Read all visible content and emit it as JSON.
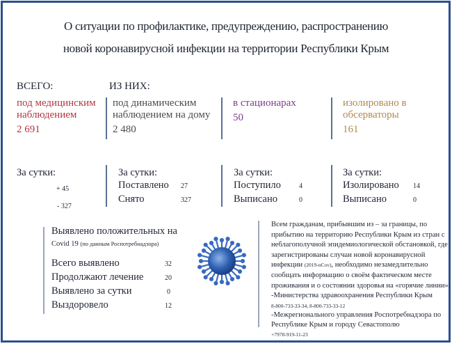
{
  "title": {
    "line1": "О ситуации по профилактике, предупреждению, распространению",
    "line2": "новой коронавирусной инфекции на территории Республики Крым"
  },
  "headers": {
    "total": "ВСЕГО:",
    "of_them": "ИЗ НИХ:"
  },
  "colors": {
    "medical": "#b2343f",
    "home": "#4a4a4a",
    "hospital": "#7a3c8c",
    "observatory": "#b08850",
    "frame": "#2c4f8e"
  },
  "stats": [
    {
      "label1": "под медицинским",
      "label2": "наблюдением",
      "value": "2 691"
    },
    {
      "label1": "под динамическим",
      "label2": "наблюдением на дому",
      "value": "2 480"
    },
    {
      "label1": "в стационарах",
      "label2": "",
      "value": "50"
    },
    {
      "label1": "изолировано в",
      "label2": "обсерваторы",
      "value": "161"
    }
  ],
  "daily": [
    {
      "heading": "За сутки:",
      "rows": [
        {
          "label": "",
          "value": "+ 45"
        },
        {
          "label": "",
          "value": "- 327"
        }
      ]
    },
    {
      "heading": "За сутки:",
      "rows": [
        {
          "label": "Поставлено",
          "value": "27"
        },
        {
          "label": "Снято",
          "value": "327"
        }
      ]
    },
    {
      "heading": "За сутки:",
      "rows": [
        {
          "label": "Поступило",
          "value": "4"
        },
        {
          "label": "Выписано",
          "value": "0"
        }
      ]
    },
    {
      "heading": "За сутки:",
      "rows": [
        {
          "label": "Изолировано",
          "value": "14"
        },
        {
          "label": "Выписано",
          "value": "0"
        }
      ]
    }
  ],
  "positive": {
    "heading": "Выявлено положительных на",
    "subheading_main": "Covid 19",
    "subheading_note": "(по данным Роспотребнадзора)",
    "rows": [
      {
        "label": "Всего выявлено",
        "value": "32"
      },
      {
        "label": "Продолжают лечение",
        "value": "20"
      },
      {
        "label": "Выявлено за сутки",
        "value": "0"
      },
      {
        "label": "Выздоровело",
        "value": "12"
      }
    ]
  },
  "notice": {
    "lines": [
      "Всем гражданам, прибывшим из – за границы, по",
      "прибытию на территорию Республики Крым из стран с",
      "неблагополучной эпидемиологической обстановкой, где",
      "зарегистрированы случаи новой коронавирусной"
    ],
    "line5_a": "инфекции ",
    "line5_code": "(2019-nCov)",
    "line5_b": ", необходимо незамедлительно",
    "lines2": [
      "сообщать информацию о своём фактическом месте",
      "проживания и о состоянии здоровья на «горячие линии»:",
      "-Министерства здравоохранения Республики Крым"
    ],
    "phones1": "8-800-733-33-34, 8-800-733-33-12",
    "lines3": [
      "-Межрегионального управления Роспотребнадзора по",
      "Республике Крым и городу Севастополю"
    ],
    "phones2": "+7978-919-11-23"
  },
  "icons": {
    "virus": "coronavirus-illustration"
  }
}
